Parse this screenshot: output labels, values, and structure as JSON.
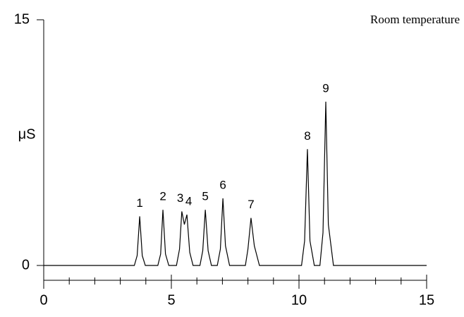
{
  "chart_data": {
    "type": "line",
    "annotation": "Room temperature",
    "y_label": "μS",
    "xlim": [
      0,
      15
    ],
    "xticks": [
      0,
      5,
      10,
      15
    ],
    "xminorticks": [
      1,
      2,
      3,
      4,
      6,
      7,
      8,
      9,
      11,
      12,
      13,
      14
    ],
    "ylim": [
      0,
      15
    ],
    "yticks": [
      0,
      15
    ],
    "color": "#000000",
    "x": [
      0,
      3.55,
      3.66,
      3.76,
      3.86,
      3.98,
      4.47,
      4.58,
      4.67,
      4.77,
      4.9,
      5.2,
      5.32,
      5.41,
      5.51,
      5.61,
      5.72,
      5.85,
      6.12,
      6.23,
      6.33,
      6.44,
      6.57,
      6.8,
      6.92,
      7.02,
      7.12,
      7.28,
      7.9,
      8.0,
      8.12,
      8.25,
      8.45,
      10.1,
      10.22,
      10.33,
      10.43,
      10.6,
      10.82,
      10.94,
      11.05,
      11.15,
      11.35,
      15
    ],
    "values": [
      0,
      0,
      0.6,
      3.0,
      0.6,
      0,
      0,
      0.7,
      3.4,
      0.7,
      0,
      0,
      1.0,
      3.3,
      2.5,
      3.1,
      0.8,
      0,
      0,
      0.9,
      3.4,
      0.9,
      0,
      0,
      1.0,
      4.1,
      1.2,
      0,
      0,
      1.0,
      2.9,
      1.2,
      0,
      0,
      1.5,
      7.1,
      1.5,
      0,
      0,
      2.0,
      10.0,
      2.5,
      0,
      0
    ],
    "peaks": [
      {
        "label": "1",
        "x": 3.76,
        "y": 3.0
      },
      {
        "label": "2",
        "x": 4.67,
        "y": 3.4
      },
      {
        "label": "3",
        "x": 5.35,
        "y": 3.3
      },
      {
        "label": "4",
        "x": 5.68,
        "y": 3.1
      },
      {
        "label": "5",
        "x": 6.33,
        "y": 3.4
      },
      {
        "label": "6",
        "x": 7.02,
        "y": 4.1
      },
      {
        "label": "7",
        "x": 8.12,
        "y": 2.9
      },
      {
        "label": "8",
        "x": 10.33,
        "y": 7.1
      },
      {
        "label": "9",
        "x": 11.05,
        "y": 10.0
      }
    ]
  }
}
